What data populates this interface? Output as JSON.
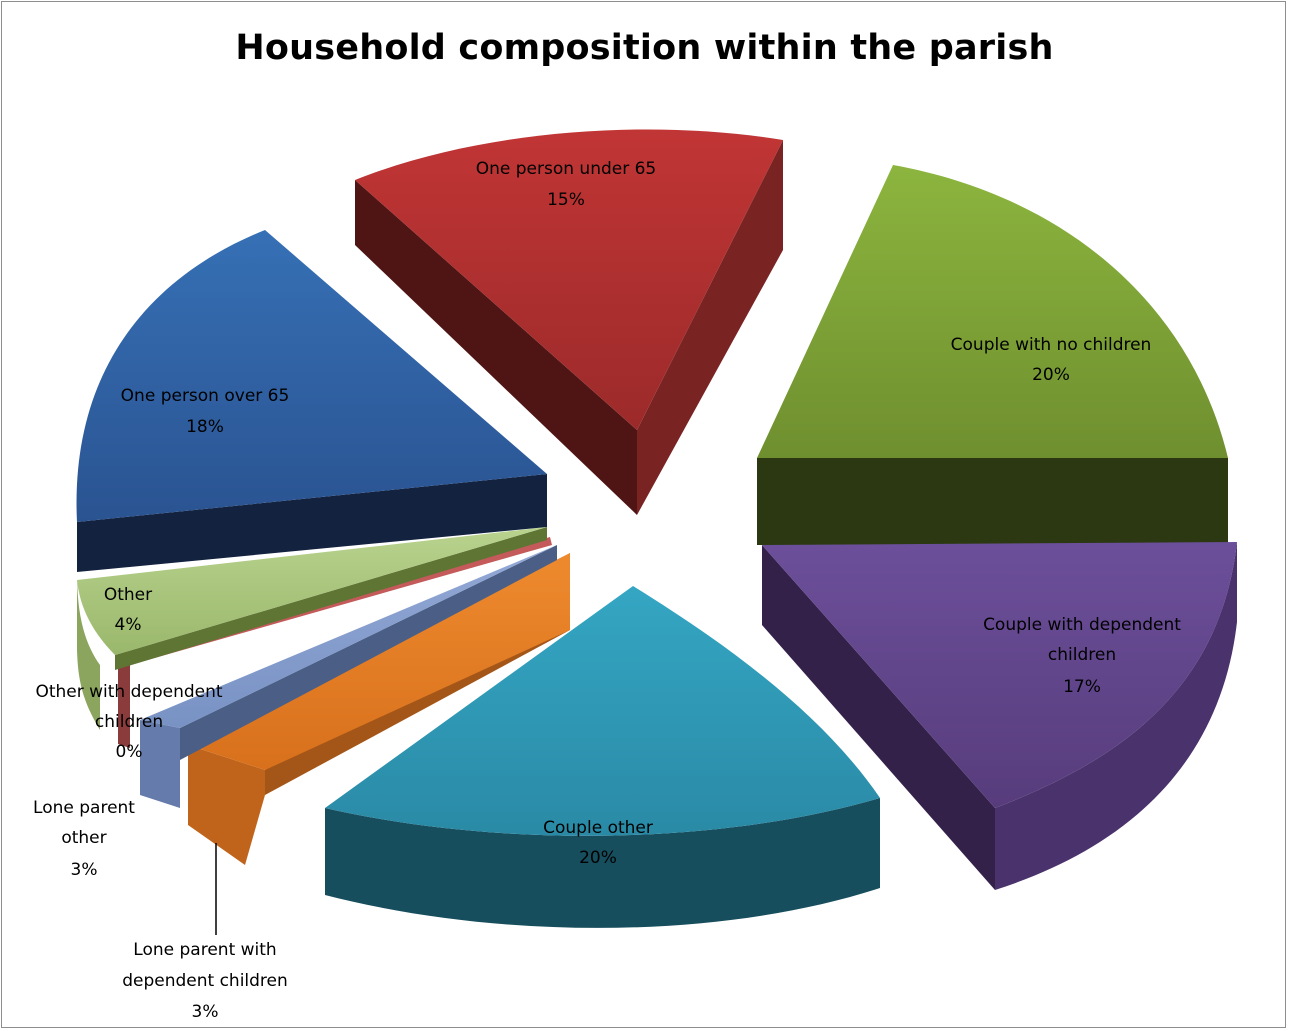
{
  "chart_data": {
    "type": "pie",
    "title": "Household composition within the parish",
    "slices": [
      {
        "name": "Couple with no children",
        "value": 20,
        "label": "20%",
        "color": "#7a9a35"
      },
      {
        "name": "Couple with dependent children",
        "value": 17,
        "label": "17%",
        "color": "#5f4488"
      },
      {
        "name": "Couple other",
        "value": 20,
        "label": "20%",
        "color": "#2b93ae"
      },
      {
        "name": "Lone parent with dependent children",
        "value": 3,
        "label": "3%",
        "color": "#dd7420"
      },
      {
        "name": "Lone parent other",
        "value": 3,
        "label": "3%",
        "color": "#7d96c9"
      },
      {
        "name": "Other with dependent children",
        "value": 0,
        "label": "0%",
        "color": "#c45a5a"
      },
      {
        "name": "Other",
        "value": 4,
        "label": "4%",
        "color": "#a8c47e"
      },
      {
        "name": "One person over 65",
        "value": 18,
        "label": "18%",
        "color": "#2e5b9e"
      },
      {
        "name": "One person under 65",
        "value": 15,
        "label": "15%",
        "color": "#b03030"
      }
    ],
    "legend": "none",
    "style": "3d-exploded-pie"
  }
}
